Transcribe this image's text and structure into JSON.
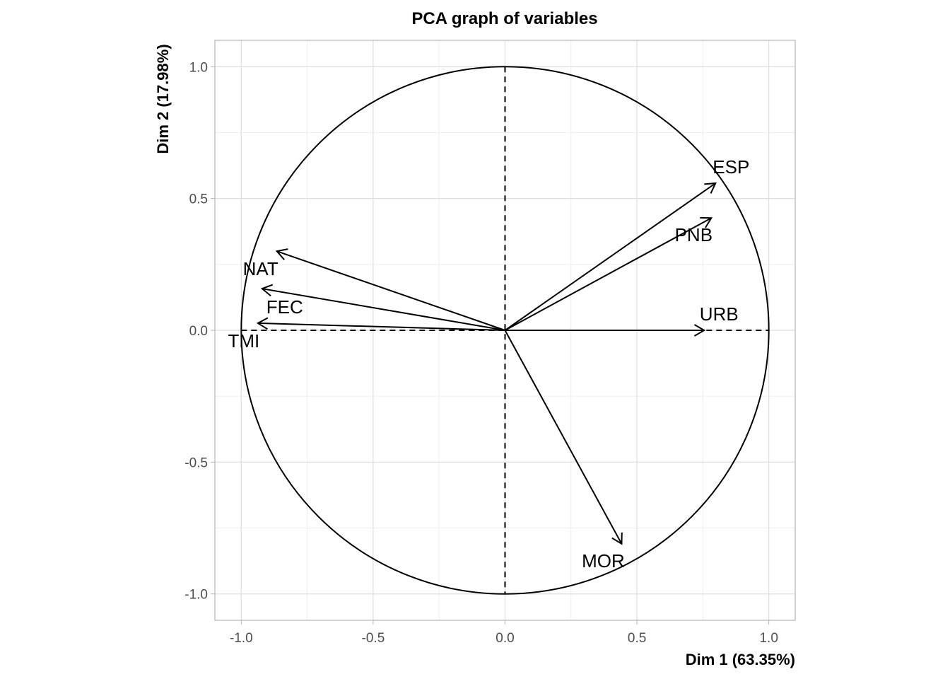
{
  "chart_data": {
    "type": "scatter",
    "subtype": "pca-correlation-circle",
    "title": "PCA graph of variables",
    "xlabel": "Dim 1 (63.35%)",
    "ylabel": "Dim 2 (17.98%)",
    "xlim": [
      -1.1,
      1.1
    ],
    "ylim": [
      -1.1,
      1.1
    ],
    "x_ticks": [
      "-1.0",
      "-0.5",
      "0.0",
      "0.5",
      "1.0"
    ],
    "y_ticks": [
      "-1.0",
      "-0.5",
      "0.0",
      "0.5",
      "1.0"
    ],
    "grid": true,
    "variables": [
      {
        "name": "ESP",
        "x": 0.798,
        "y": 0.558
      },
      {
        "name": "PNB",
        "x": 0.782,
        "y": 0.426
      },
      {
        "name": "URB",
        "x": 0.755,
        "y": 0.0
      },
      {
        "name": "MOR",
        "x": 0.442,
        "y": -0.81
      },
      {
        "name": "NAT",
        "x": -0.865,
        "y": 0.3
      },
      {
        "name": "FEC",
        "x": -0.921,
        "y": 0.158
      },
      {
        "name": "TMI",
        "x": -0.937,
        "y": 0.027
      }
    ]
  }
}
